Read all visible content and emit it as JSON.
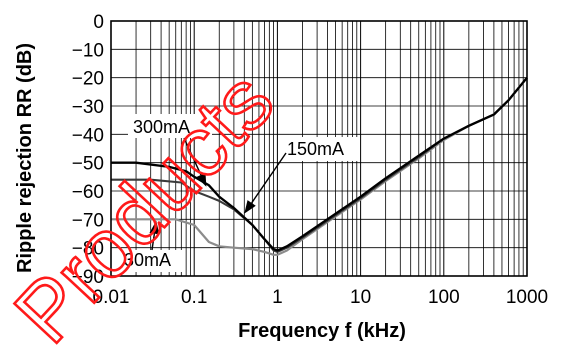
{
  "chart_data": {
    "type": "line",
    "xlabel": "Frequency f (kHz)",
    "ylabel": "Ripple rejection RR (dB)",
    "xscale": "log",
    "xlim": [
      0.01,
      1000
    ],
    "ylim": [
      -90,
      0
    ],
    "x_ticks": [
      "0.01",
      "0.1",
      "1",
      "10",
      "100",
      "1000"
    ],
    "x_tick_values": [
      0.01,
      0.1,
      1,
      10,
      100,
      1000
    ],
    "y_ticks": [
      "0",
      "−10",
      "−20",
      "−30",
      "−40",
      "−50",
      "−60",
      "−70",
      "−80",
      "−90"
    ],
    "y_tick_values": [
      0,
      -10,
      -20,
      -30,
      -40,
      -50,
      -60,
      -70,
      -80,
      -90
    ],
    "grid": true,
    "series": [
      {
        "name": "300mA",
        "color": "#000000",
        "points": [
          [
            0.01,
            -50
          ],
          [
            0.02,
            -50
          ],
          [
            0.05,
            -51.5
          ],
          [
            0.08,
            -53
          ],
          [
            0.1,
            -55
          ],
          [
            0.15,
            -58
          ],
          [
            0.2,
            -62
          ],
          [
            0.3,
            -66
          ],
          [
            0.5,
            -72
          ],
          [
            0.7,
            -77
          ],
          [
            0.9,
            -80.5
          ],
          [
            1,
            -81
          ],
          [
            1.3,
            -79.5
          ],
          [
            2,
            -76
          ],
          [
            5,
            -68
          ],
          [
            10,
            -62
          ],
          [
            20,
            -55.5
          ],
          [
            50,
            -47.5
          ],
          [
            100,
            -41.5
          ],
          [
            200,
            -37
          ],
          [
            400,
            -33
          ],
          [
            600,
            -28
          ],
          [
            1000,
            -20
          ]
        ]
      },
      {
        "name": "150mA",
        "color": "#3a3a3a",
        "points": [
          [
            0.01,
            -56
          ],
          [
            0.03,
            -56
          ],
          [
            0.07,
            -57
          ],
          [
            0.1,
            -60
          ],
          [
            0.15,
            -62
          ],
          [
            0.2,
            -63.5
          ],
          [
            0.3,
            -66.5
          ],
          [
            0.5,
            -72
          ],
          [
            0.7,
            -77
          ],
          [
            0.9,
            -81
          ],
          [
            1,
            -81.5
          ],
          [
            1.3,
            -80
          ],
          [
            2,
            -76.5
          ],
          [
            5,
            -68.5
          ],
          [
            10,
            -62.5
          ],
          [
            20,
            -56
          ],
          [
            50,
            -48
          ],
          [
            100,
            -41.5
          ],
          [
            200,
            -37
          ],
          [
            400,
            -33
          ],
          [
            600,
            -28
          ],
          [
            1000,
            -20
          ]
        ]
      },
      {
        "name": "30mA",
        "color": "#8c8c8c",
        "points": [
          [
            0.01,
            -70
          ],
          [
            0.03,
            -70
          ],
          [
            0.06,
            -70
          ],
          [
            0.1,
            -72
          ],
          [
            0.15,
            -78
          ],
          [
            0.2,
            -79.5
          ],
          [
            0.3,
            -80
          ],
          [
            0.5,
            -80.5
          ],
          [
            0.7,
            -81.5
          ],
          [
            0.9,
            -82.5
          ],
          [
            1,
            -82.5
          ],
          [
            1.3,
            -81
          ],
          [
            2,
            -77
          ],
          [
            5,
            -69
          ],
          [
            10,
            -63
          ],
          [
            20,
            -56.5
          ],
          [
            50,
            -48.5
          ],
          [
            100,
            -42
          ],
          [
            200,
            -37
          ],
          [
            400,
            -33
          ],
          [
            600,
            -28
          ],
          [
            1000,
            -20
          ]
        ]
      }
    ],
    "annotations": [
      {
        "text": "300mA",
        "arrow_to": [
          0.14,
          -58.5
        ]
      },
      {
        "text": "150mA",
        "arrow_to": [
          0.4,
          -68
        ]
      },
      {
        "text": "30mA",
        "arrow_to": [
          0.035,
          -70.5
        ]
      }
    ],
    "watermark": "Products"
  }
}
